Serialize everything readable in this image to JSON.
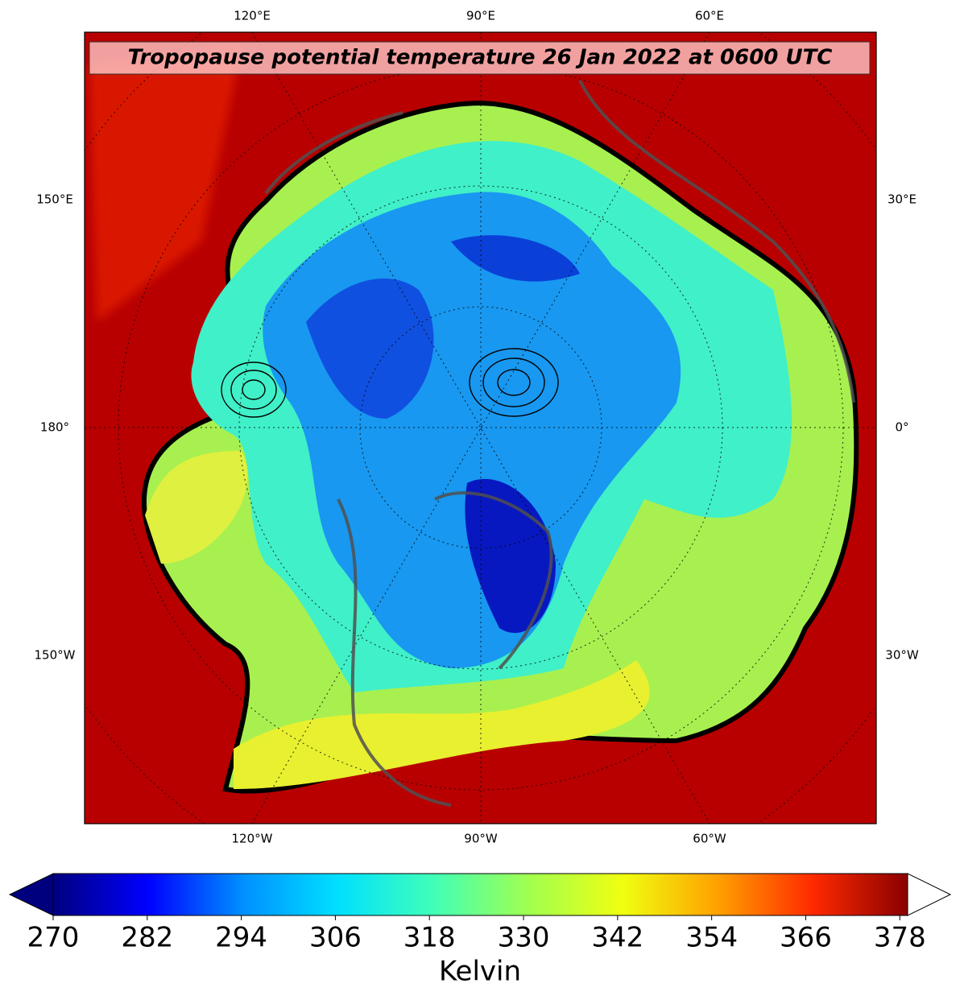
{
  "map": {
    "title": "Tropopause potential temperature 26 Jan 2022 at 0600 UTC",
    "lon_labels_top": [
      "120°E",
      "90°E",
      "60°E"
    ],
    "lon_labels_bottom": [
      "120°W",
      "90°W",
      "60°W"
    ],
    "lon_labels_left": [
      "150°E",
      "180°",
      "150°W"
    ],
    "lon_labels_right": [
      "30°E",
      "0°",
      "30°W"
    ]
  },
  "colorbar": {
    "label": "Kelvin",
    "lim": [
      270,
      379
    ],
    "ticks": [
      270,
      282,
      294,
      306,
      318,
      330,
      342,
      354,
      366,
      378
    ],
    "colormap": [
      "#00007f",
      "#0000ff",
      "#0090ff",
      "#00e0ff",
      "#40ffb8",
      "#a0ff50",
      "#f0ff10",
      "#ffa000",
      "#ff2a00",
      "#8a0000"
    ],
    "under_color": "#00007f",
    "over_color": "#ffffff"
  }
}
